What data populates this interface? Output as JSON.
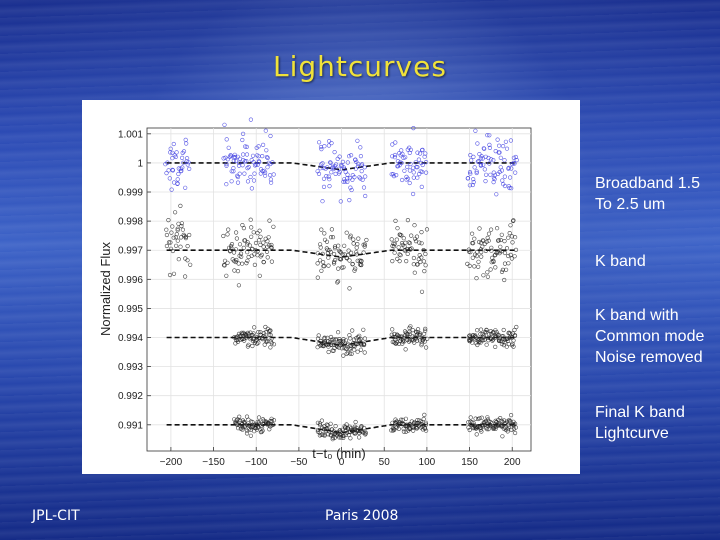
{
  "slide": {
    "title": "Lightcurves",
    "footer_left": "JPL-CIT",
    "footer_center": "Paris 2008"
  },
  "band_labels": [
    "Broadband 1.5\nTo 2.5 um",
    "K band",
    "K band with\nCommon mode\nNoise removed",
    "Final K band\nLightcurve"
  ],
  "chart_data": {
    "type": "scatter",
    "title": "",
    "xlabel": "t−t₀ (min)",
    "ylabel": "Normalized Flux",
    "xlim": [
      -228,
      222
    ],
    "ylim": [
      0.9901,
      1.0012
    ],
    "grid": true,
    "x_ticks": [
      -200,
      -150,
      -100,
      -50,
      0,
      50,
      100,
      150,
      200
    ],
    "x_tick_labels": [
      "−200",
      "−150",
      "−100",
      "−50",
      "0",
      "50",
      "100",
      "150",
      "200"
    ],
    "y_ticks": [
      0.991,
      0.992,
      0.993,
      0.994,
      0.995,
      0.996,
      0.997,
      0.998,
      0.999,
      1,
      1.001
    ],
    "y_tick_labels": [
      "0.991",
      "0.992",
      "0.993",
      "0.994",
      "0.995",
      "0.996",
      "0.997",
      "0.998",
      "0.999",
      "1",
      "1.001"
    ],
    "model": {
      "style": "dashed",
      "ingress_start": -58,
      "ingress_end": -28,
      "egress_start": 28,
      "egress_end": 58,
      "x_range": [
        -205,
        205
      ]
    },
    "series": [
      {
        "color": "#3a3ae0",
        "baseline": 1.0,
        "depth": 0.00035,
        "scatter": 0.00045,
        "x_range": [
          -205,
          205
        ],
        "gaps": [
          [
            -178,
            -138
          ],
          [
            -80,
            -28
          ],
          [
            28,
            58
          ],
          [
            100,
            148
          ]
        ],
        "points_per_minute": 1.4
      },
      {
        "color": "#222222",
        "baseline": 0.997,
        "depth": 0.00035,
        "scatter": 0.00045,
        "x_range": [
          -205,
          205
        ],
        "gaps": [
          [
            -178,
            -138
          ],
          [
            -80,
            -28
          ],
          [
            28,
            58
          ],
          [
            100,
            148
          ]
        ],
        "points_per_minute": 1.4,
        "offset_first_group": 0.0008
      },
      {
        "color": "#222222",
        "baseline": 0.994,
        "depth": 0.0004,
        "scatter": 0.00016,
        "x_range": [
          -125,
          205
        ],
        "gaps": [
          [
            -80,
            -28
          ],
          [
            28,
            58
          ],
          [
            100,
            148
          ]
        ],
        "points_per_minute": 1.7
      },
      {
        "color": "#222222",
        "baseline": 0.991,
        "depth": 0.0004,
        "scatter": 0.00014,
        "x_range": [
          -125,
          205
        ],
        "gaps": [
          [
            -80,
            -28
          ],
          [
            28,
            58
          ],
          [
            100,
            148
          ]
        ],
        "points_per_minute": 1.7
      }
    ]
  }
}
